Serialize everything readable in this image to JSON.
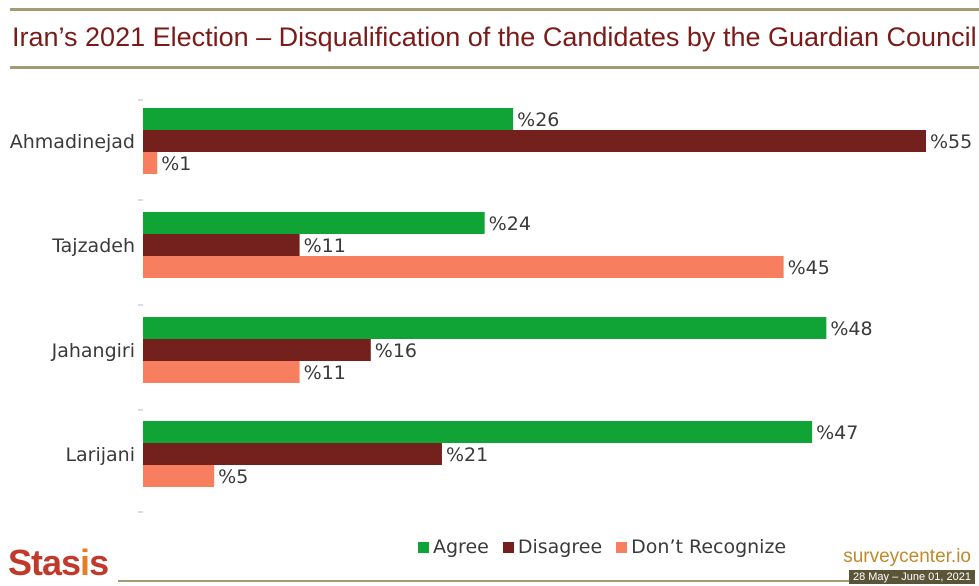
{
  "header": {
    "title": "Iran’s 2021 Election – Disqualification of the Candidates by the Guardian Council"
  },
  "colors": {
    "agree": "#10a336",
    "disagree": "#74201c",
    "dont_recognize": "#f77f60",
    "title": "#7b1a18",
    "rule": "#a39a76"
  },
  "chart_data": {
    "type": "bar",
    "orientation": "horizontal",
    "categories": [
      "Ahmadinejad",
      "Tajzadeh",
      "Jahangiri",
      "Larijani"
    ],
    "series": [
      {
        "name": "Agree",
        "values": [
          26,
          24,
          48,
          47
        ]
      },
      {
        "name": "Disagree",
        "values": [
          55,
          11,
          16,
          21
        ]
      },
      {
        "name": "Don’t Recognize",
        "values": [
          1,
          45,
          11,
          5
        ]
      }
    ],
    "value_prefix": "%",
    "xlim": [
      0,
      55
    ],
    "grid": false,
    "legend_position": "bottom-center"
  },
  "footer": {
    "logo": "Stasis",
    "site": "surveycenter.io",
    "date": "28 May – June 01, 2021"
  }
}
